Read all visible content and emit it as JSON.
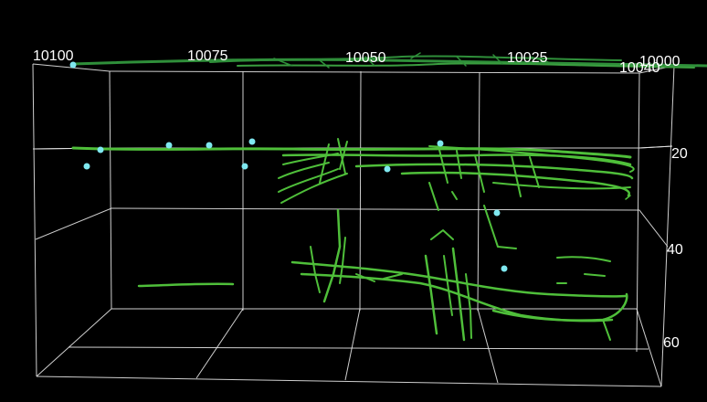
{
  "viewer": {
    "background": "#000000",
    "grid_color": "#e6e6e6",
    "trace_color": "#4fbf3a",
    "trace_color_dark": "#2f8f3a",
    "point_color": "#7fe8f0"
  },
  "axes": {
    "x_ticks": [
      "10100",
      "10075",
      "10050",
      "10025",
      "10000"
    ],
    "y_ticks": [
      "20",
      "40",
      "60"
    ],
    "corner_label": "10040"
  }
}
